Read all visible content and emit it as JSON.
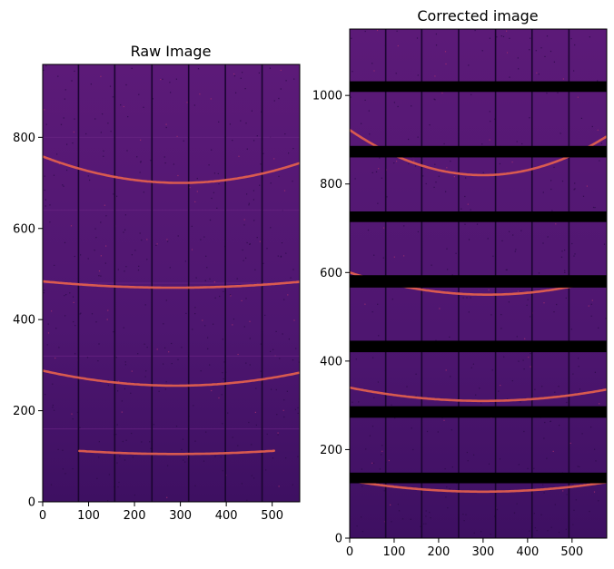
{
  "chart_data": [
    {
      "type": "heatmap",
      "title": "Raw Image",
      "colormap": "inferno",
      "xlim": [
        0,
        560
      ],
      "ylim": [
        0,
        960
      ],
      "xticks": [
        0,
        100,
        200,
        300,
        400,
        500
      ],
      "yticks": [
        0,
        200,
        400,
        600,
        800
      ],
      "background_color": "#5c1a78",
      "ring_color": "#e8624c",
      "panel_gaps_x": [
        78,
        157,
        238,
        318,
        398,
        478
      ],
      "row_boundaries_y": [
        160,
        320,
        480,
        640,
        800
      ],
      "rings": [
        {
          "x_start": 80,
          "x_end": 505,
          "vertex_x": 290,
          "vertex_y": 105,
          "edge_y": 118
        },
        {
          "x_start": 0,
          "x_end": 560,
          "vertex_x": 290,
          "vertex_y": 255,
          "edge_y": 288
        },
        {
          "x_start": 0,
          "x_end": 560,
          "vertex_x": 285,
          "vertex_y": 470,
          "edge_y": 484
        },
        {
          "x_start": 0,
          "x_end": 560,
          "vertex_x": 300,
          "vertex_y": 700,
          "edge_y": 758
        }
      ]
    },
    {
      "type": "heatmap",
      "title": "Corrected image",
      "colormap": "inferno",
      "xlim": [
        0,
        578
      ],
      "ylim": [
        0,
        1150
      ],
      "xticks": [
        0,
        100,
        200,
        300,
        400,
        500
      ],
      "yticks": [
        0,
        200,
        400,
        600,
        800,
        1000
      ],
      "background_color": "#5c1a78",
      "ring_color": "#e8624c",
      "panel_gaps_x": [
        81,
        162,
        245,
        328,
        410,
        493
      ],
      "masked_bands_y": [
        [
          124,
          148
        ],
        [
          272,
          298
        ],
        [
          420,
          446
        ],
        [
          566,
          594
        ],
        [
          714,
          738
        ],
        [
          860,
          886
        ],
        [
          1008,
          1032
        ]
      ],
      "rings": [
        {
          "x_start": 0,
          "x_end": 578,
          "vertex_x": 300,
          "vertex_y": 105,
          "edge_y": 130
        },
        {
          "x_start": 0,
          "x_end": 578,
          "vertex_x": 300,
          "vertex_y": 310,
          "edge_y": 340
        },
        {
          "x_start": 0,
          "x_end": 578,
          "vertex_x": 310,
          "vertex_y": 550,
          "edge_y": 600
        },
        {
          "x_start": 0,
          "x_end": 578,
          "vertex_x": 300,
          "vertex_y": 820,
          "edge_y": 922
        }
      ]
    }
  ]
}
